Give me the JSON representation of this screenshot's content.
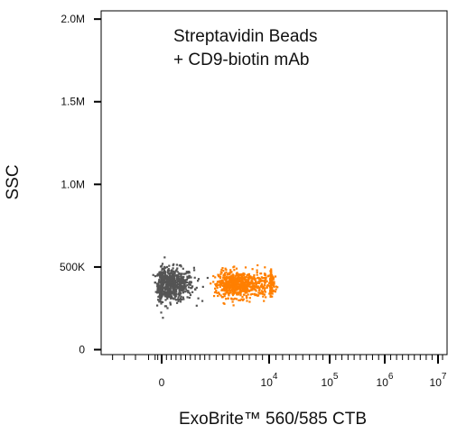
{
  "chart_data": {
    "type": "scatter",
    "title": "",
    "xlabel": "ExoBrite™ 560/585 CTB",
    "ylabel": "SSC",
    "annotation": [
      "Streptavidin Beads",
      "+ CD9-biotin mAb"
    ],
    "x_scale": "biexponential",
    "y_scale": "linear",
    "x_ticks": [
      {
        "label": "0",
        "value": 0
      },
      {
        "base": "10",
        "exp": "4",
        "value": 10000
      },
      {
        "base": "10",
        "exp": "5",
        "value": 100000
      },
      {
        "base": "10",
        "exp": "6",
        "value": 1000000
      },
      {
        "base": "10",
        "exp": "7",
        "value": 10000000
      }
    ],
    "y_ticks": [
      {
        "label": "0",
        "value": 0
      },
      {
        "label": "500K",
        "value": 500000
      },
      {
        "label": "1.0M",
        "value": 1000000
      },
      {
        "label": "1.5M",
        "value": 1500000
      },
      {
        "label": "2.0M",
        "value": 2000000
      }
    ],
    "ylim": [
      -30000,
      2050000
    ],
    "grid": false,
    "series": [
      {
        "color": "#555555",
        "x_center": 150,
        "x_spread": 250,
        "y_center": 400000,
        "y_spread": 50000,
        "count": 700
      },
      {
        "color": "#ff7f00",
        "x_center": 5500,
        "x_spread": 2500,
        "y_center": 400000,
        "y_spread": 40000,
        "count": 750
      }
    ]
  }
}
